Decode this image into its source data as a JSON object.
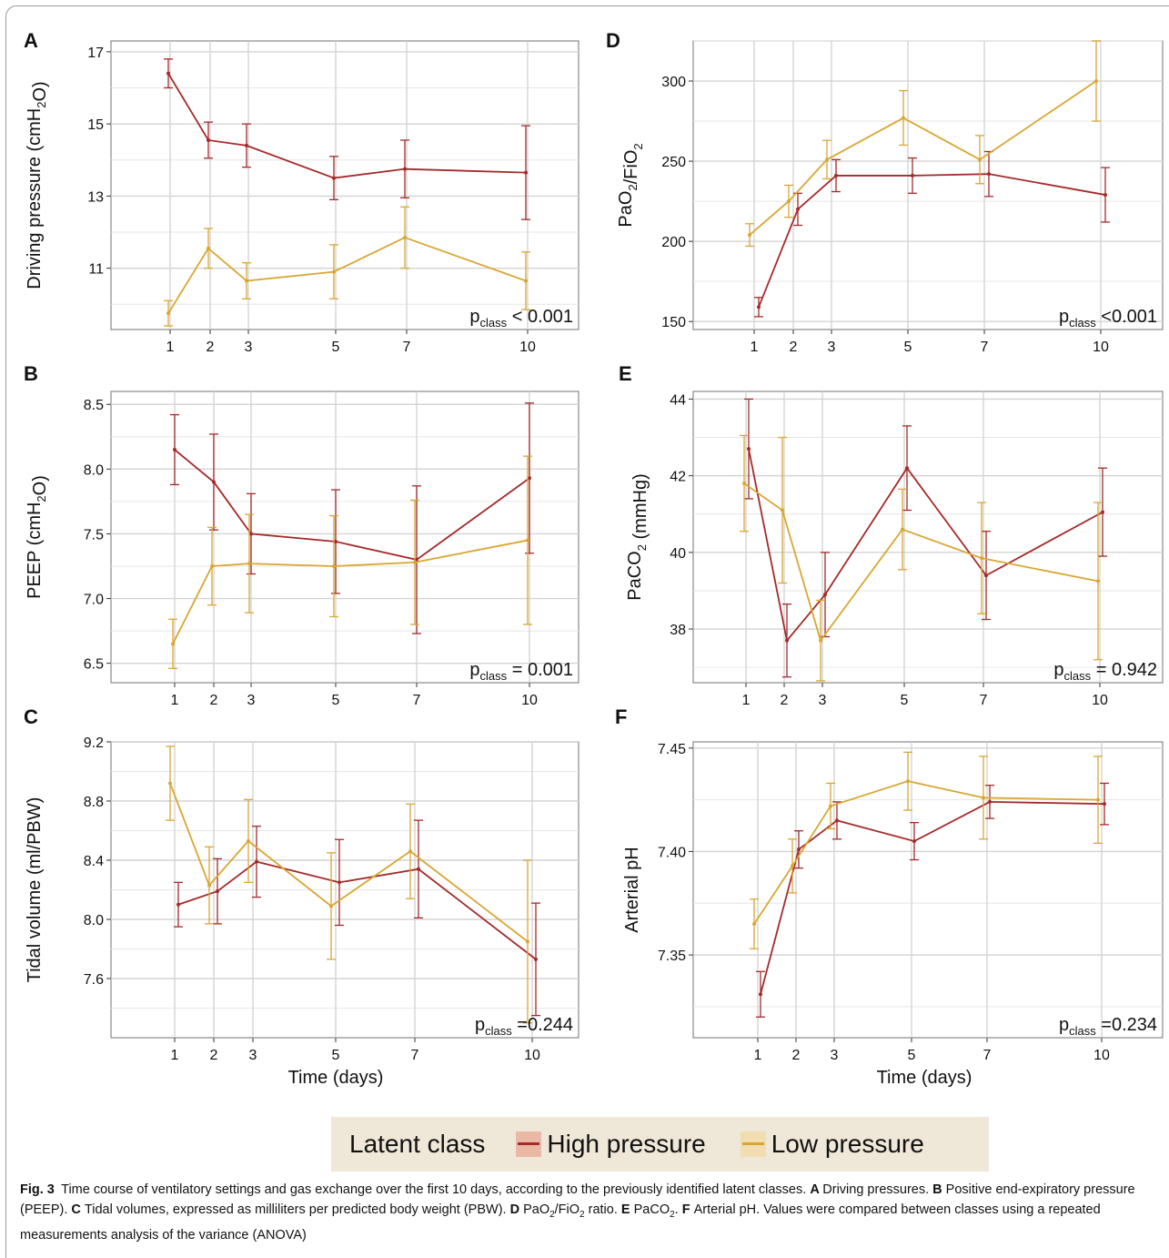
{
  "colors": {
    "high": "#a52a2a",
    "low": "#d9a632",
    "grid": "#d4d4d4",
    "axis": "#888888"
  },
  "chart_data": [
    {
      "type": "line",
      "panel": "A",
      "ylabel": "Driving pressure (cmH2O)",
      "x": [
        1,
        2,
        3,
        5,
        7,
        10
      ],
      "ylim": [
        9.3,
        17.3
      ],
      "yticks": [
        11,
        13,
        15,
        17
      ],
      "ytick_labels": [
        "11",
        "13",
        "15",
        "17"
      ],
      "pvalue": "< 0.001",
      "series": [
        {
          "name": "High pressure",
          "values": [
            16.4,
            14.55,
            14.4,
            13.5,
            13.75,
            13.65
          ],
          "err": [
            0.4,
            0.5,
            0.6,
            0.6,
            0.8,
            1.3
          ]
        },
        {
          "name": "Low pressure",
          "values": [
            9.75,
            11.55,
            10.65,
            10.9,
            11.85,
            10.65
          ],
          "err": [
            0.35,
            0.55,
            0.5,
            0.75,
            0.85,
            0.8
          ]
        }
      ]
    },
    {
      "type": "line",
      "panel": "B",
      "ylabel": "PEEP (cmH2O)",
      "x": [
        1,
        2,
        3,
        5,
        7,
        10
      ],
      "ylim": [
        6.35,
        8.6
      ],
      "yticks": [
        6.5,
        7.0,
        7.5,
        8.0,
        8.5
      ],
      "ytick_labels": [
        "6.5",
        "7.0",
        "7.5",
        "8.0",
        "8.5"
      ],
      "pvalue": "= 0.001",
      "series": [
        {
          "name": "High pressure",
          "values": [
            8.15,
            7.9,
            7.5,
            7.44,
            7.3,
            7.93
          ],
          "err": [
            0.27,
            0.37,
            0.31,
            0.4,
            0.57,
            0.58
          ]
        },
        {
          "name": "Low pressure",
          "values": [
            6.65,
            7.25,
            7.27,
            7.25,
            7.28,
            7.45
          ],
          "err": [
            0.19,
            0.3,
            0.38,
            0.39,
            0.48,
            0.65
          ]
        }
      ]
    },
    {
      "type": "line",
      "panel": "C",
      "ylabel": "Tidal volume (ml/PBW)",
      "x": [
        1,
        2,
        3,
        5,
        7,
        10
      ],
      "ylim": [
        7.2,
        9.2
      ],
      "yticks": [
        7.6,
        8.0,
        8.4,
        8.8,
        9.2
      ],
      "ytick_labels": [
        "7.6",
        "8.0",
        "8.4",
        "8.8",
        "9.2"
      ],
      "pvalue": "=0.244",
      "series": [
        {
          "name": "High pressure",
          "values": [
            8.1,
            8.19,
            8.39,
            8.25,
            8.34,
            7.73
          ],
          "err": [
            0.15,
            0.22,
            0.24,
            0.29,
            0.33,
            0.38
          ]
        },
        {
          "name": "Low pressure",
          "values": [
            8.92,
            8.23,
            8.53,
            8.09,
            8.46,
            7.85
          ],
          "err": [
            0.25,
            0.26,
            0.28,
            0.36,
            0.32,
            0.55
          ]
        }
      ]
    },
    {
      "type": "line",
      "panel": "D",
      "ylabel": "PaO2/FiO2",
      "x": [
        1,
        2,
        3,
        5,
        7,
        10
      ],
      "ylim": [
        145,
        325
      ],
      "yticks": [
        150,
        200,
        250,
        300
      ],
      "ytick_labels": [
        "150",
        "200",
        "250",
        "300"
      ],
      "pvalue": "<0.001",
      "series": [
        {
          "name": "High pressure",
          "values": [
            159,
            220,
            241,
            241,
            242,
            229
          ],
          "err": [
            6,
            10,
            10,
            11,
            14,
            17
          ]
        },
        {
          "name": "Low pressure",
          "values": [
            204,
            225,
            251,
            277,
            251,
            300
          ],
          "err": [
            7,
            10,
            12,
            17,
            15,
            25
          ]
        }
      ]
    },
    {
      "type": "line",
      "panel": "E",
      "ylabel": "PaCO2 (mmHg)",
      "x": [
        1,
        2,
        3,
        5,
        7,
        10
      ],
      "ylim": [
        36.6,
        44.2
      ],
      "yticks": [
        38,
        40,
        42,
        44
      ],
      "ytick_labels": [
        "38",
        "40",
        "42",
        "44"
      ],
      "pvalue": "= 0.942",
      "series": [
        {
          "name": "High pressure",
          "values": [
            42.7,
            37.7,
            38.9,
            42.2,
            39.4,
            41.05
          ],
          "err": [
            1.3,
            0.95,
            1.1,
            1.1,
            1.15,
            1.15
          ]
        },
        {
          "name": "Low pressure",
          "values": [
            41.8,
            41.1,
            37.7,
            40.6,
            39.85,
            39.25
          ],
          "err": [
            1.25,
            1.9,
            1.05,
            1.05,
            1.45,
            2.05
          ]
        }
      ]
    },
    {
      "type": "line",
      "panel": "F",
      "ylabel": "Arterial pH",
      "x": [
        1,
        2,
        3,
        5,
        7,
        10
      ],
      "ylim": [
        7.31,
        7.453
      ],
      "yticks": [
        7.35,
        7.4,
        7.45
      ],
      "ytick_labels": [
        "7.35",
        "7.40",
        "7.45"
      ],
      "pvalue": "=0.234",
      "series": [
        {
          "name": "High pressure",
          "values": [
            7.331,
            7.401,
            7.415,
            7.405,
            7.424,
            7.423
          ],
          "err": [
            0.011,
            0.009,
            0.009,
            0.009,
            0.008,
            0.01
          ]
        },
        {
          "name": "Low pressure",
          "values": [
            7.365,
            7.393,
            7.422,
            7.434,
            7.426,
            7.425
          ],
          "err": [
            0.012,
            0.013,
            0.011,
            0.014,
            0.02,
            0.021
          ]
        }
      ]
    }
  ],
  "xaxis": {
    "ticks": [
      1,
      2,
      3,
      5,
      7,
      10
    ],
    "label": "Time (days)",
    "label_panels": [
      "C",
      "F"
    ]
  },
  "pclass_label": "class",
  "legend": {
    "title": "Latent class",
    "high": "High pressure",
    "low": "Low pressure"
  },
  "caption": {
    "fig_label": "Fig. 3",
    "intro": "Time course of ventilatory settings and gas exchange over the first 10 days, according to the previously identified latent classes.",
    "items": [
      {
        "label": "A",
        "text": "Driving pressures."
      },
      {
        "label": "B",
        "text": "Positive end-expiratory pressure (PEEP)."
      },
      {
        "label": "C",
        "text": "Tidal volumes, expressed as milliliters per predicted body weight (PBW)."
      },
      {
        "label": "D",
        "text": "PaO2/FiO2 ratio."
      },
      {
        "label": "E",
        "text": "PaCO2."
      },
      {
        "label": "F",
        "text": "Arterial pH. Values were compared between classes using a repeated measurements analysis of the variance (ANOVA)"
      }
    ]
  }
}
